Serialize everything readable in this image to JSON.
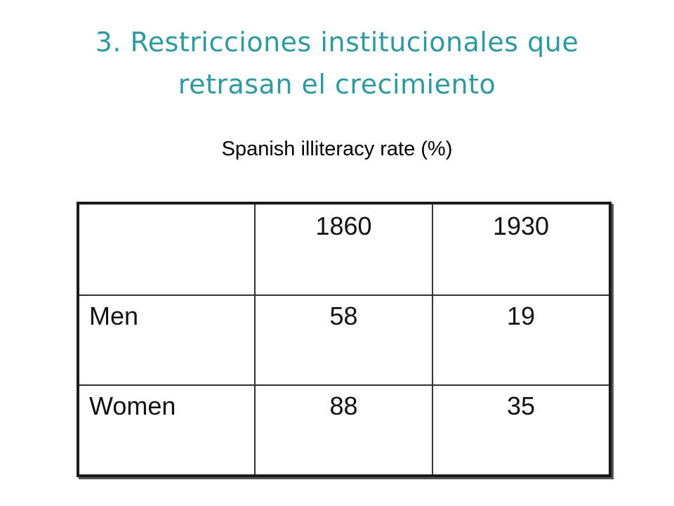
{
  "slide": {
    "title": "3. Restricciones institucionales que retrasan el crecimiento",
    "title_color": "#2E9AA0"
  },
  "table": {
    "caption": "Spanish illiteracy rate (%)",
    "columns": [
      "",
      "1860",
      "1930"
    ],
    "rows": [
      {
        "label": "Men",
        "values": [
          "58",
          "19"
        ]
      },
      {
        "label": "Women",
        "values": [
          "88",
          "35"
        ]
      }
    ]
  }
}
